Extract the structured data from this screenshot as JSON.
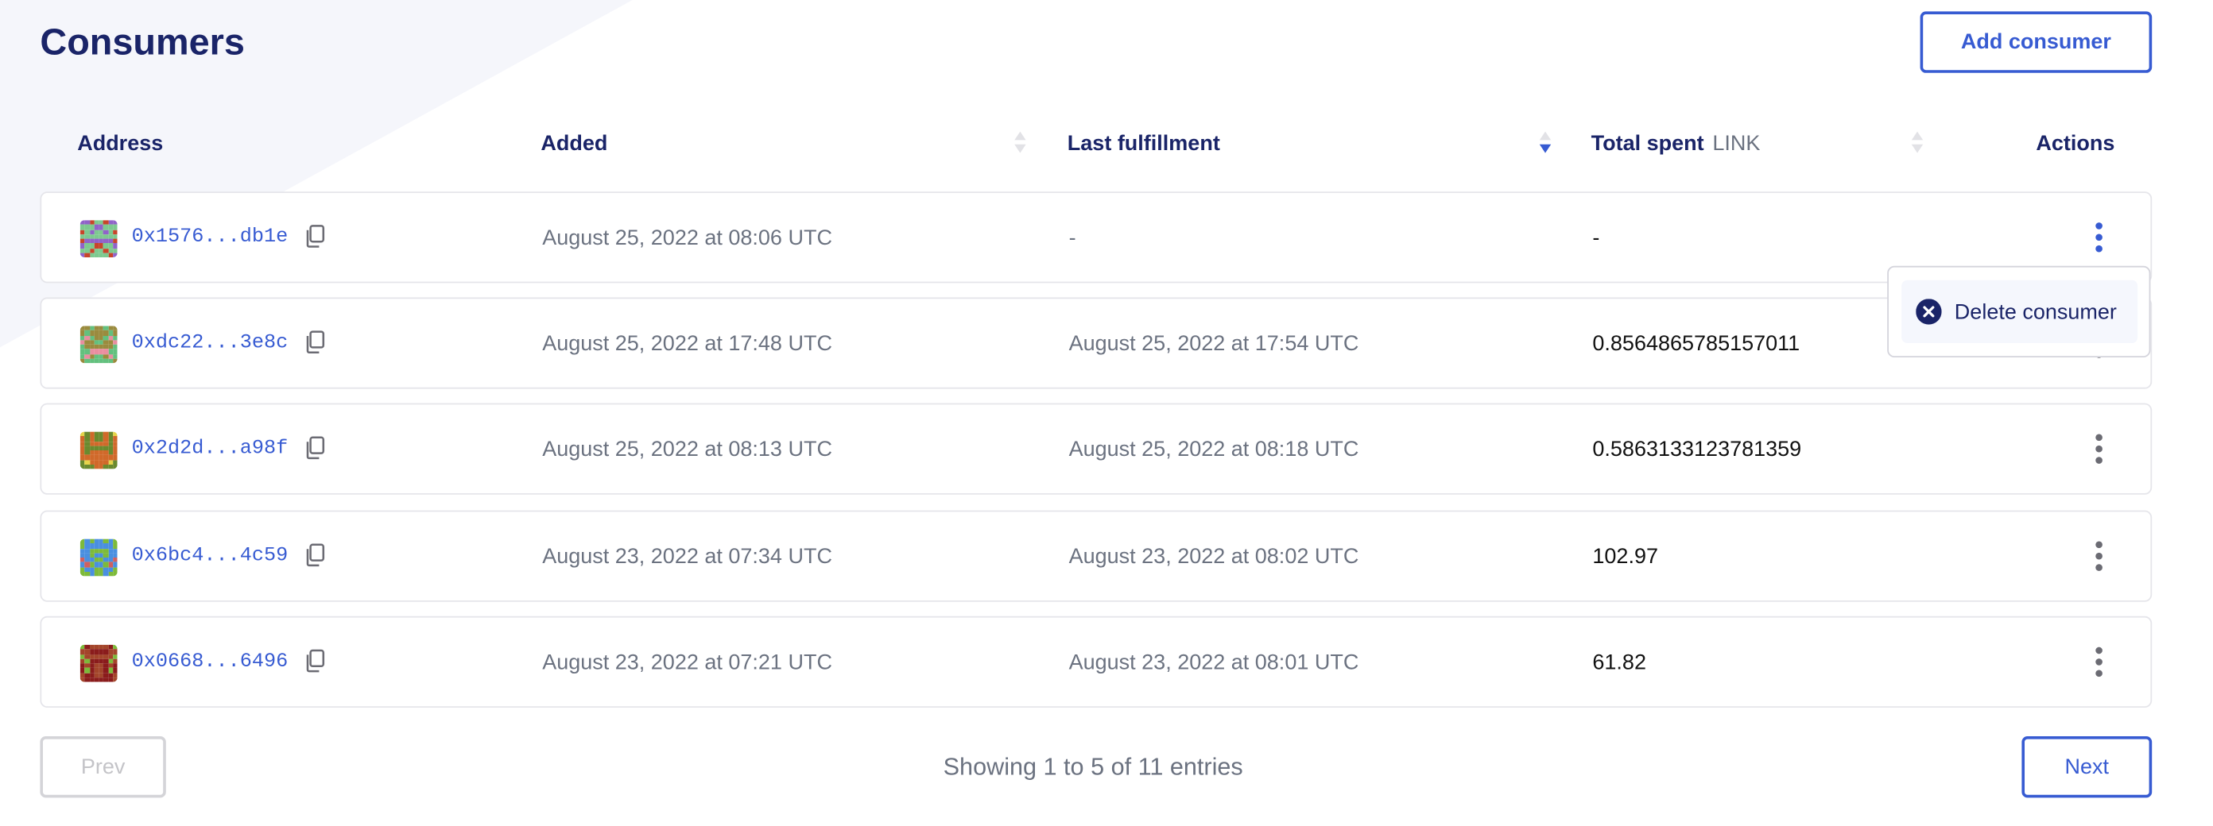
{
  "page": {
    "title": "Consumers",
    "add_button": "Add consumer"
  },
  "colors": {
    "accent": "#375bd2",
    "heading": "#1a2468",
    "muted": "#6b7280",
    "background_shape": "#f5f6fb"
  },
  "table": {
    "columns": [
      {
        "label": "Address"
      },
      {
        "label": "Added",
        "sortable": true,
        "sort": "none"
      },
      {
        "label": "Last fulfillment",
        "sortable": true,
        "sort": "descending"
      },
      {
        "label": "Total spent",
        "unit": "LINK",
        "sortable": true,
        "sort": "none"
      },
      {
        "label": "Actions"
      }
    ],
    "rows": [
      {
        "address": "0x1576...db1e",
        "added": "August 25, 2022 at 08:06 UTC",
        "last_fulfillment": "-",
        "total_spent": "-",
        "avatar_colors": [
          "#7dc98f",
          "#9063c9",
          "#c8452a"
        ],
        "menu_open": true
      },
      {
        "address": "0xdc22...3e8c",
        "added": "August 25, 2022 at 17:48 UTC",
        "last_fulfillment": "August 25, 2022 at 17:54 UTC",
        "total_spent": "0.8564865785157011",
        "avatar_colors": [
          "#63c07e",
          "#9a8b3e",
          "#e98ea0"
        ]
      },
      {
        "address": "0x2d2d...a98f",
        "added": "August 25, 2022 at 08:13 UTC",
        "last_fulfillment": "August 25, 2022 at 08:18 UTC",
        "total_spent": "0.5863133123781359",
        "avatar_colors": [
          "#6a8a2e",
          "#d0692a",
          "#e6d44a"
        ]
      },
      {
        "address": "0x6bc4...4c59",
        "added": "August 23, 2022 at 07:34 UTC",
        "last_fulfillment": "August 23, 2022 at 08:02 UTC",
        "total_spent": "102.97",
        "avatar_colors": [
          "#4a8fe0",
          "#7dba3a",
          "#d06060"
        ]
      },
      {
        "address": "0x0668...6496",
        "added": "August 23, 2022 at 07:21 UTC",
        "last_fulfillment": "August 23, 2022 at 08:01 UTC",
        "total_spent": "61.82",
        "avatar_colors": [
          "#a3452a",
          "#8a1c1c",
          "#7dba3a"
        ]
      }
    ]
  },
  "row_menu": {
    "items": [
      {
        "label": "Delete consumer",
        "icon": "close-circle-icon"
      }
    ]
  },
  "pagination": {
    "prev": "Prev",
    "next": "Next",
    "summary": "Showing 1 to 5 of 11 entries",
    "prev_disabled": true
  }
}
